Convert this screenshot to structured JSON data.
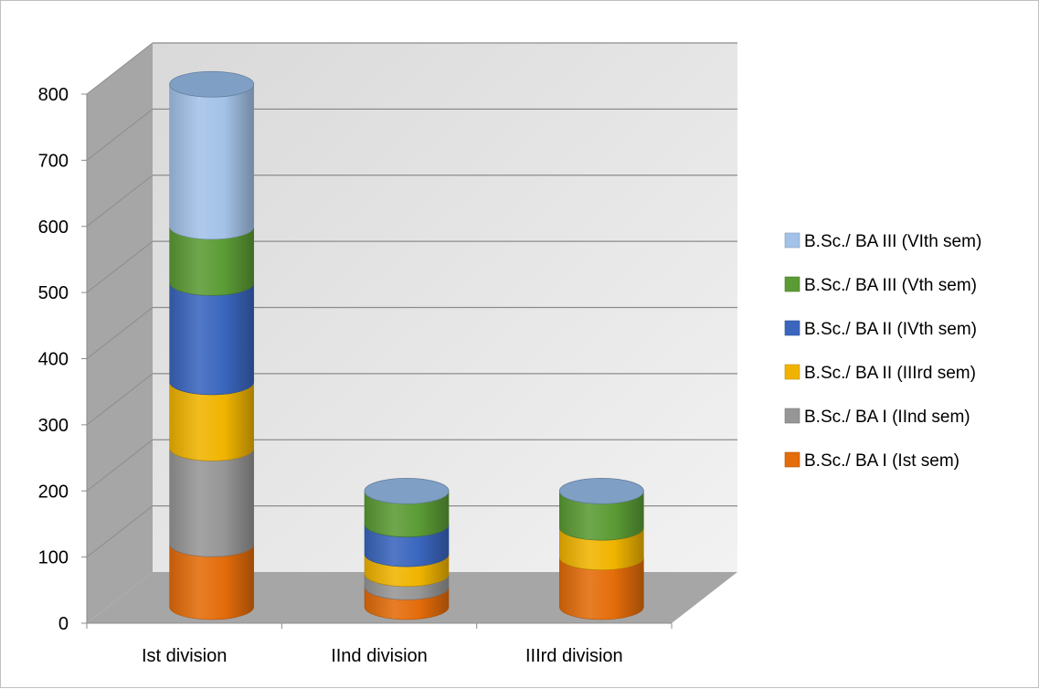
{
  "chart_data": {
    "type": "bar",
    "stacked": true,
    "three_d": true,
    "title": "",
    "xlabel": "",
    "ylabel": "",
    "categories": [
      "Ist division",
      "IInd division",
      "IIIrd division"
    ],
    "ylim": [
      0,
      800
    ],
    "yticks": [
      0,
      100,
      200,
      300,
      400,
      500,
      600,
      700,
      800
    ],
    "grid": true,
    "legend_position": "right",
    "series": [
      {
        "name": "B.Sc./ BA I (Ist sem)",
        "color": "#e46c0a",
        "values": [
          95,
          30,
          75
        ]
      },
      {
        "name": "B.Sc./ BA I (IInd sem)",
        "color": "#969696",
        "values": [
          145,
          20,
          0
        ]
      },
      {
        "name": "B.Sc./ BA II (IIIrd  sem)",
        "color": "#f0b400",
        "values": [
          100,
          30,
          45
        ]
      },
      {
        "name": "B.Sc./ BA II (IVth sem)",
        "color": "#3a66be",
        "values": [
          150,
          45,
          0
        ]
      },
      {
        "name": "B.Sc./ BA III (Vth sem)",
        "color": "#5b9b35",
        "values": [
          85,
          50,
          55
        ]
      },
      {
        "name": "B.Sc./ BA III (VIth sem)",
        "color": "#a3c2e8",
        "values": [
          215,
          0,
          0
        ]
      }
    ],
    "top_cap_color": "#7f9fc4",
    "wall_color": "#e6e6e6",
    "side_wall_color": "#a6a6a6",
    "floor_color": "#a6a6a6"
  }
}
